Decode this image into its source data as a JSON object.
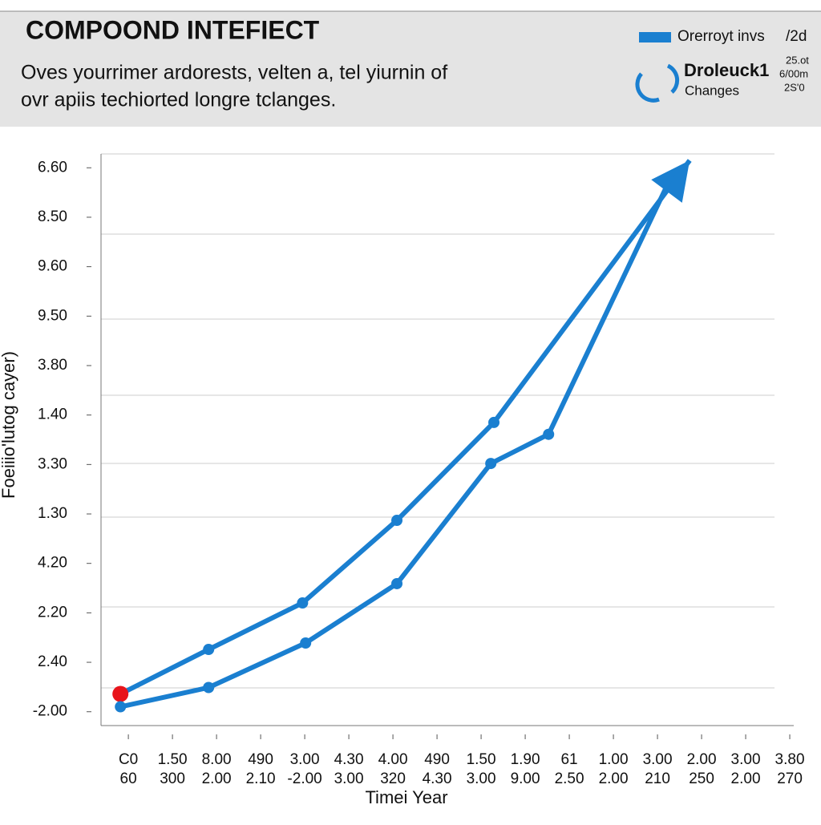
{
  "chart_data": {
    "type": "line",
    "title": "COMPOOND INTEFIECT",
    "subtitle_lines": [
      "Oves yourrimer ardorests, velten a, tel yiurnin of",
      "ovr apiis techiorted longre tclanges."
    ],
    "legend": {
      "entries": [
        {
          "label": "Orerroyt invs",
          "note": "/2d",
          "color": "#1a7fd0"
        },
        {
          "label": "Droleuck1",
          "sublabel": "Changes",
          "notes": [
            "25.ot",
            "6/00m",
            "2S'0"
          ],
          "color": "#1a7fd0"
        }
      ]
    },
    "y_label": "Foeiiio'lutog cayer)",
    "x_label": "Timei Year",
    "ylim": [
      -0.28,
      11.28
    ],
    "yticks": [
      {
        "value": 0,
        "label": "-2.00"
      },
      {
        "value": 1,
        "label": "2.40"
      },
      {
        "value": 2,
        "label": "2.20"
      },
      {
        "value": 3,
        "label": "4.20"
      },
      {
        "value": 4,
        "label": "1.30"
      },
      {
        "value": 5,
        "label": "3.30"
      },
      {
        "value": 6,
        "label": "1.40"
      },
      {
        "value": 7,
        "label": "3.80"
      },
      {
        "value": 8,
        "label": "9.50"
      },
      {
        "value": 9,
        "label": "9.60"
      },
      {
        "value": 10,
        "label": "8.50"
      },
      {
        "value": 11,
        "label": "6.60"
      }
    ],
    "xlim": [
      -0.62,
      15.09
    ],
    "xticks": [
      {
        "value": 0,
        "label": "C0"
      },
      {
        "value": 1,
        "label": "1.50"
      },
      {
        "value": 2,
        "label": "8.00"
      },
      {
        "value": 3,
        "label": "490"
      },
      {
        "value": 4,
        "label": "3.00"
      },
      {
        "value": 5,
        "label": "4.30"
      },
      {
        "value": 6,
        "label": "4.00"
      },
      {
        "value": 7,
        "label": "490"
      },
      {
        "value": 8,
        "label": "1.50"
      },
      {
        "value": 9,
        "label": "1.90"
      },
      {
        "value": 10,
        "label": "61"
      },
      {
        "value": 11,
        "label": "1.00"
      },
      {
        "value": 12,
        "label": "3.00"
      },
      {
        "value": 13,
        "label": "2.00"
      },
      {
        "value": 14,
        "label": "3.00"
      },
      {
        "value": 15,
        "label": "3.80"
      }
    ],
    "xticks_second_row": [
      "60",
      "300",
      "2.00",
      "2.10",
      "-2.00",
      "3.00",
      "320",
      "4.30",
      "3.00",
      "9.00",
      "2.50",
      "2.00",
      "210",
      "250",
      "2.00",
      "270"
    ],
    "start_marker_color": "#e8141b",
    "series": [
      {
        "color": "#1a7fd0",
        "x": [
          -0.18,
          1.82,
          3.95,
          6.09,
          8.29,
          12.73
        ],
        "values": [
          0.36,
          1.26,
          2.2,
          3.87,
          5.85,
          11.15
        ]
      },
      {
        "color": "#1a7fd0",
        "x": [
          -0.18,
          1.82,
          4.02,
          6.09,
          8.22,
          9.53,
          12.36
        ],
        "values": [
          0.1,
          0.49,
          1.39,
          2.59,
          5.02,
          5.61,
          10.91
        ]
      }
    ]
  }
}
